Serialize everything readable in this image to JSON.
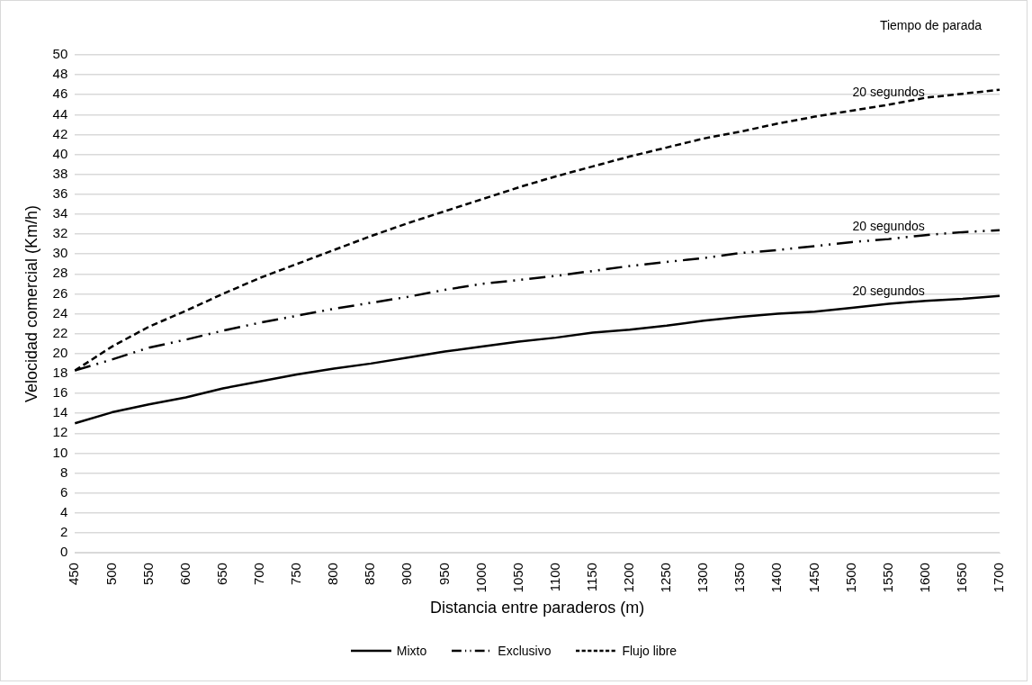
{
  "chart_data": {
    "type": "line",
    "xlabel": "Distancia entre paraderos (m)",
    "ylabel": "Velocidad comercial (Km/h)",
    "categories": [
      "450",
      "500",
      "550",
      "600",
      "650",
      "700",
      "750",
      "800",
      "850",
      "900",
      "950",
      "1000",
      "1050",
      "1100",
      "1150",
      "1200",
      "1250",
      "1300",
      "1350",
      "1400",
      "1450",
      "1500",
      "1550",
      "1600",
      "1650",
      "1700"
    ],
    "series": [
      {
        "name": "Mixto",
        "color": "#000000",
        "line_style": "solid",
        "values": [
          13.0,
          14.1,
          14.9,
          15.6,
          16.5,
          17.2,
          17.9,
          18.5,
          19.0,
          19.6,
          20.2,
          20.7,
          21.2,
          21.6,
          22.1,
          22.4,
          22.8,
          23.3,
          23.7,
          24.0,
          24.2,
          24.6,
          25.0,
          25.3,
          25.5,
          25.8
        ]
      },
      {
        "name": "Exclusivo",
        "color": "#000000",
        "line_style": "dotted",
        "values": [
          18.3,
          19.4,
          20.6,
          21.4,
          22.3,
          23.1,
          23.8,
          24.5,
          25.1,
          25.7,
          26.4,
          27.0,
          27.4,
          27.8,
          28.3,
          28.8,
          29.2,
          29.6,
          30.1,
          30.4,
          30.8,
          31.2,
          31.5,
          31.9,
          32.2,
          32.4
        ]
      },
      {
        "name": "Flujo libre",
        "color": "#000000",
        "line_style": "dashed",
        "values": [
          18.3,
          20.7,
          22.7,
          24.3,
          26.0,
          27.6,
          29.0,
          30.4,
          31.8,
          33.1,
          34.3,
          35.5,
          36.7,
          37.8,
          38.8,
          39.8,
          40.7,
          41.6,
          42.3,
          43.1,
          43.8,
          44.4,
          45.0,
          45.7,
          46.1,
          46.5
        ]
      }
    ],
    "ylim": [
      0,
      50
    ],
    "yticks": [
      0,
      2,
      4,
      6,
      8,
      10,
      12,
      14,
      16,
      18,
      20,
      22,
      24,
      26,
      28,
      30,
      32,
      34,
      36,
      38,
      40,
      42,
      44,
      46,
      48,
      50
    ],
    "grid": "y",
    "legend": "bottom",
    "marker": "none",
    "annotations": [
      "Tiempo de parada",
      "20 segundos",
      "20 segundos",
      "20 segundos"
    ]
  }
}
